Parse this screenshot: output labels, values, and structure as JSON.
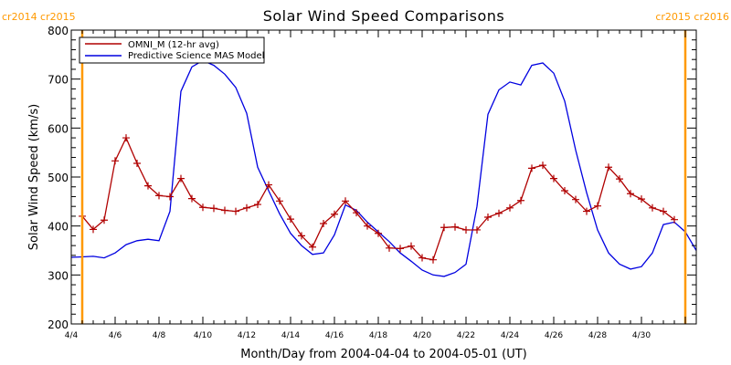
{
  "chart_data": {
    "type": "line",
    "title": "Solar Wind Speed Comparisons",
    "xlabel": "Month/Day from 2004-04-04 to 2004-05-01 (UT)",
    "ylabel": "Solar Wind Speed (km/s)",
    "xlim": [
      "2004-04-04T00:00",
      "2004-05-02T12:00"
    ],
    "ylim": [
      200,
      800
    ],
    "x_tick_labels": [
      "4/4",
      "4/6",
      "4/8",
      "4/10",
      "4/12",
      "4/14",
      "4/16",
      "4/18",
      "4/20",
      "4/22",
      "4/24",
      "4/26",
      "4/28",
      "4/30"
    ],
    "x_tick_dates": [
      "2004-04-04",
      "2004-04-06",
      "2004-04-08",
      "2004-04-10",
      "2004-04-12",
      "2004-04-14",
      "2004-04-16",
      "2004-04-18",
      "2004-04-20",
      "2004-04-22",
      "2004-04-24",
      "2004-04-26",
      "2004-04-28",
      "2004-04-30"
    ],
    "y_ticks": [
      200,
      300,
      400,
      500,
      600,
      700,
      800
    ],
    "carrington_markers": [
      {
        "date": "2004-04-04T12:00",
        "labels": [
          "cr2014",
          "cr2015"
        ],
        "label_side": "left"
      },
      {
        "date": "2004-05-02T00:00",
        "labels": [
          "cr2015",
          "cr2016"
        ],
        "label_side": "right"
      }
    ],
    "legend_position": "top-left",
    "colors": {
      "omni": "#b00000",
      "model": "#0000e0",
      "carrington": "#ff9900",
      "axes": "#000000"
    },
    "series": [
      {
        "name": "OMNI_M (12-hr avg)",
        "color": "#b00000",
        "marker": "+",
        "points": [
          [
            "2004-04-04T12:00",
            420
          ],
          [
            "2004-04-05T00:00",
            393
          ],
          [
            "2004-04-05T12:00",
            412
          ],
          [
            "2004-04-06T00:00",
            533
          ],
          [
            "2004-04-06T12:00",
            580
          ],
          [
            "2004-04-07T00:00",
            528
          ],
          [
            "2004-04-07T12:00",
            482
          ],
          [
            "2004-04-08T00:00",
            462
          ],
          [
            "2004-04-08T12:00",
            460
          ],
          [
            "2004-04-09T00:00",
            497
          ],
          [
            "2004-04-09T12:00",
            456
          ],
          [
            "2004-04-10T00:00",
            438
          ],
          [
            "2004-04-10T12:00",
            436
          ],
          [
            "2004-04-11T00:00",
            432
          ],
          [
            "2004-04-11T12:00",
            430
          ],
          [
            "2004-04-12T00:00",
            437
          ],
          [
            "2004-04-12T12:00",
            444
          ],
          [
            "2004-04-13T00:00",
            484
          ],
          [
            "2004-04-13T12:00",
            451
          ],
          [
            "2004-04-14T00:00",
            414
          ],
          [
            "2004-04-14T12:00",
            380
          ],
          [
            "2004-04-15T00:00",
            357
          ],
          [
            "2004-04-15T12:00",
            405
          ],
          [
            "2004-04-16T00:00",
            424
          ],
          [
            "2004-04-16T12:00",
            451
          ],
          [
            "2004-04-17T00:00",
            427
          ],
          [
            "2004-04-17T12:00",
            400
          ],
          [
            "2004-04-18T00:00",
            385
          ],
          [
            "2004-04-18T12:00",
            355
          ],
          [
            "2004-04-19T00:00",
            354
          ],
          [
            "2004-04-19T12:00",
            359
          ],
          [
            "2004-04-20T00:00",
            335
          ],
          [
            "2004-04-20T12:00",
            331
          ],
          [
            "2004-04-21T00:00",
            397
          ],
          [
            "2004-04-21T12:00",
            398
          ],
          [
            "2004-04-22T00:00",
            392
          ],
          [
            "2004-04-22T12:00",
            392
          ],
          [
            "2004-04-23T00:00",
            418
          ],
          [
            "2004-04-23T12:00",
            426
          ],
          [
            "2004-04-24T00:00",
            437
          ],
          [
            "2004-04-24T12:00",
            452
          ],
          [
            "2004-04-25T00:00",
            518
          ],
          [
            "2004-04-25T12:00",
            524
          ],
          [
            "2004-04-26T00:00",
            497
          ],
          [
            "2004-04-26T12:00",
            472
          ],
          [
            "2004-04-27T00:00",
            454
          ],
          [
            "2004-04-27T12:00",
            430
          ],
          [
            "2004-04-28T00:00",
            441
          ],
          [
            "2004-04-28T12:00",
            520
          ],
          [
            "2004-04-29T00:00",
            496
          ],
          [
            "2004-04-29T12:00",
            466
          ],
          [
            "2004-04-30T00:00",
            455
          ],
          [
            "2004-04-30T12:00",
            437
          ],
          [
            "2004-05-01T00:00",
            430
          ],
          [
            "2004-05-01T12:00",
            413
          ]
        ]
      },
      {
        "name": "Predictive Science MAS Model",
        "color": "#0000e0",
        "marker": "none",
        "points": [
          [
            "2004-04-04T00:00",
            336
          ],
          [
            "2004-04-04T12:00",
            337
          ],
          [
            "2004-04-05T00:00",
            338
          ],
          [
            "2004-04-05T12:00",
            335
          ],
          [
            "2004-04-06T00:00",
            345
          ],
          [
            "2004-04-06T12:00",
            362
          ],
          [
            "2004-04-07T00:00",
            370
          ],
          [
            "2004-04-07T12:00",
            373
          ],
          [
            "2004-04-08T00:00",
            370
          ],
          [
            "2004-04-08T12:00",
            430
          ],
          [
            "2004-04-09T00:00",
            675
          ],
          [
            "2004-04-09T12:00",
            725
          ],
          [
            "2004-04-10T00:00",
            738
          ],
          [
            "2004-04-10T12:00",
            728
          ],
          [
            "2004-04-11T00:00",
            710
          ],
          [
            "2004-04-11T12:00",
            683
          ],
          [
            "2004-04-12T00:00",
            630
          ],
          [
            "2004-04-12T12:00",
            520
          ],
          [
            "2004-04-13T00:00",
            472
          ],
          [
            "2004-04-13T12:00",
            425
          ],
          [
            "2004-04-14T00:00",
            385
          ],
          [
            "2004-04-14T12:00",
            360
          ],
          [
            "2004-04-15T00:00",
            342
          ],
          [
            "2004-04-15T12:00",
            345
          ],
          [
            "2004-04-16T00:00",
            382
          ],
          [
            "2004-04-16T12:00",
            443
          ],
          [
            "2004-04-17T00:00",
            432
          ],
          [
            "2004-04-17T12:00",
            408
          ],
          [
            "2004-04-18T00:00",
            388
          ],
          [
            "2004-04-18T12:00",
            368
          ],
          [
            "2004-04-19T00:00",
            345
          ],
          [
            "2004-04-19T12:00",
            328
          ],
          [
            "2004-04-20T00:00",
            310
          ],
          [
            "2004-04-20T12:00",
            300
          ],
          [
            "2004-04-21T00:00",
            297
          ],
          [
            "2004-04-21T12:00",
            305
          ],
          [
            "2004-04-22T00:00",
            322
          ],
          [
            "2004-04-22T12:00",
            440
          ],
          [
            "2004-04-23T00:00",
            628
          ],
          [
            "2004-04-23T12:00",
            678
          ],
          [
            "2004-04-24T00:00",
            694
          ],
          [
            "2004-04-24T12:00",
            688
          ],
          [
            "2004-04-25T00:00",
            728
          ],
          [
            "2004-04-25T12:00",
            733
          ],
          [
            "2004-04-26T00:00",
            712
          ],
          [
            "2004-04-26T12:00",
            655
          ],
          [
            "2004-04-27T00:00",
            555
          ],
          [
            "2004-04-27T12:00",
            468
          ],
          [
            "2004-04-28T00:00",
            392
          ],
          [
            "2004-04-28T12:00",
            345
          ],
          [
            "2004-04-29T00:00",
            322
          ],
          [
            "2004-04-29T12:00",
            312
          ],
          [
            "2004-04-30T00:00",
            317
          ],
          [
            "2004-04-30T12:00",
            345
          ],
          [
            "2004-05-01T00:00",
            403
          ],
          [
            "2004-05-01T12:00",
            408
          ],
          [
            "2004-05-02T00:00",
            388
          ],
          [
            "2004-05-02T12:00",
            350
          ]
        ]
      }
    ]
  }
}
